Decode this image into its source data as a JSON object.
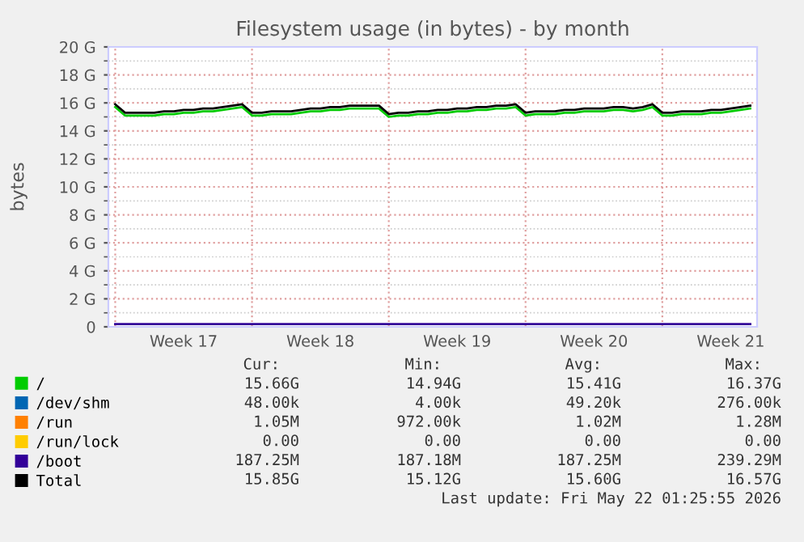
{
  "chart_data": {
    "type": "line",
    "title": "Filesystem usage (in bytes) - by month",
    "ylabel": "bytes",
    "categories": [
      null,
      null,
      null,
      null,
      null,
      null,
      null,
      "Week 17",
      null,
      null,
      null,
      null,
      null,
      null,
      null,
      null,
      null,
      null,
      null,
      null,
      null,
      "Week 18",
      null,
      null,
      null,
      null,
      null,
      null,
      null,
      null,
      null,
      null,
      null,
      null,
      null,
      "Week 19",
      null,
      null,
      null,
      null,
      null,
      null,
      null,
      null,
      null,
      null,
      null,
      null,
      null,
      "Week 20",
      null,
      null,
      null,
      null,
      null,
      null,
      null,
      null,
      null,
      null,
      null,
      null,
      null,
      "Week 21",
      null,
      null
    ],
    "series": [
      {
        "name": "/",
        "color": "#00cc00",
        "values": [
          15.7,
          15.1,
          15.1,
          15.1,
          15.1,
          15.2,
          15.2,
          15.3,
          15.3,
          15.4,
          15.4,
          15.5,
          15.6,
          15.7,
          15.1,
          15.1,
          15.2,
          15.2,
          15.2,
          15.3,
          15.4,
          15.4,
          15.5,
          15.5,
          15.6,
          15.6,
          15.6,
          15.6,
          15.0,
          15.1,
          15.1,
          15.2,
          15.2,
          15.3,
          15.3,
          15.4,
          15.4,
          15.5,
          15.5,
          15.6,
          15.6,
          15.7,
          15.1,
          15.2,
          15.2,
          15.2,
          15.3,
          15.3,
          15.4,
          15.4,
          15.4,
          15.5,
          15.5,
          15.4,
          15.5,
          15.7,
          15.1,
          15.1,
          15.2,
          15.2,
          15.2,
          15.3,
          15.3,
          15.4,
          15.5,
          15.6
        ]
      },
      {
        "name": "/dev/shm",
        "color": "#0066b3",
        "values": [
          null,
          null,
          null,
          null,
          null,
          null,
          null,
          null,
          null,
          null,
          null,
          null,
          null,
          null,
          null,
          null,
          null,
          null,
          null,
          null,
          null,
          null,
          null,
          null,
          null,
          null,
          null,
          null,
          null,
          null,
          null,
          null,
          null,
          null,
          null,
          null,
          null,
          null,
          null,
          null,
          null,
          null,
          null,
          null,
          null,
          null,
          null,
          null,
          null,
          null,
          null,
          null,
          null,
          null,
          null,
          null,
          null,
          null,
          null,
          null,
          null,
          null,
          null,
          null,
          null,
          null
        ]
      },
      {
        "name": "/run",
        "color": "#ff8000",
        "values": [
          null,
          null,
          null,
          null,
          null,
          null,
          null,
          null,
          null,
          null,
          null,
          null,
          null,
          null,
          null,
          null,
          null,
          null,
          null,
          null,
          null,
          null,
          null,
          null,
          null,
          null,
          null,
          null,
          null,
          null,
          null,
          null,
          null,
          null,
          null,
          null,
          null,
          null,
          null,
          null,
          null,
          null,
          null,
          null,
          null,
          null,
          null,
          null,
          null,
          null,
          null,
          null,
          null,
          null,
          null,
          null,
          null,
          null,
          null,
          null,
          null,
          null,
          null,
          null,
          null,
          null
        ]
      },
      {
        "name": "/run/lock",
        "color": "#ffcc00",
        "values": [
          null,
          null,
          null,
          null,
          null,
          null,
          null,
          null,
          null,
          null,
          null,
          null,
          null,
          null,
          null,
          null,
          null,
          null,
          null,
          null,
          null,
          null,
          null,
          null,
          null,
          null,
          null,
          null,
          null,
          null,
          null,
          null,
          null,
          null,
          null,
          null,
          null,
          null,
          null,
          null,
          null,
          null,
          null,
          null,
          null,
          null,
          null,
          null,
          null,
          null,
          null,
          null,
          null,
          null,
          null,
          null,
          null,
          null,
          null,
          null,
          null,
          null,
          null,
          null,
          null,
          null
        ]
      },
      {
        "name": "/boot",
        "color": "#330099",
        "values": [
          0.2,
          0.2,
          0.2,
          0.2,
          0.2,
          0.2,
          0.2,
          0.2,
          0.2,
          0.2,
          0.2,
          0.2,
          0.2,
          0.2,
          0.2,
          0.2,
          0.2,
          0.2,
          0.2,
          0.2,
          0.2,
          0.2,
          0.2,
          0.2,
          0.2,
          0.2,
          0.2,
          0.2,
          0.2,
          0.2,
          0.2,
          0.2,
          0.2,
          0.2,
          0.2,
          0.2,
          0.2,
          0.2,
          0.2,
          0.2,
          0.2,
          0.2,
          0.2,
          0.2,
          0.2,
          0.2,
          0.2,
          0.2,
          0.2,
          0.2,
          0.2,
          0.2,
          0.2,
          0.2,
          0.2,
          0.2,
          0.2,
          0.2,
          0.2,
          0.2,
          0.2,
          0.2,
          0.2,
          0.2,
          0.2,
          0.2
        ]
      },
      {
        "name": "Total",
        "color": "#000000",
        "values": [
          15.9,
          15.3,
          15.3,
          15.3,
          15.3,
          15.4,
          15.4,
          15.5,
          15.5,
          15.6,
          15.6,
          15.7,
          15.8,
          15.9,
          15.3,
          15.3,
          15.4,
          15.4,
          15.4,
          15.5,
          15.6,
          15.6,
          15.7,
          15.7,
          15.8,
          15.8,
          15.8,
          15.8,
          15.2,
          15.3,
          15.3,
          15.4,
          15.4,
          15.5,
          15.5,
          15.6,
          15.6,
          15.7,
          15.7,
          15.8,
          15.8,
          15.9,
          15.3,
          15.4,
          15.4,
          15.4,
          15.5,
          15.5,
          15.6,
          15.6,
          15.6,
          15.7,
          15.7,
          15.6,
          15.7,
          15.9,
          15.3,
          15.3,
          15.4,
          15.4,
          15.4,
          15.5,
          15.5,
          15.6,
          15.7,
          15.8
        ]
      }
    ],
    "ylim": [
      0,
      20
    ],
    "yticks": [
      {
        "value": 0,
        "label": "0"
      },
      {
        "value": 2,
        "label": "2 G"
      },
      {
        "value": 4,
        "label": "4 G"
      },
      {
        "value": 6,
        "label": "6 G"
      },
      {
        "value": 8,
        "label": "8 G"
      },
      {
        "value": 10,
        "label": "10 G"
      },
      {
        "value": 12,
        "label": "12 G"
      },
      {
        "value": 14,
        "label": "14 G"
      },
      {
        "value": 16,
        "label": "16 G"
      },
      {
        "value": 18,
        "label": "18 G"
      },
      {
        "value": 20,
        "label": "20 G"
      }
    ],
    "grid": true,
    "legend": "bottom",
    "annotations": [
      "Cur:",
      "Min:",
      "Avg:",
      "Max:",
      "15.66G",
      "14.94G",
      "15.41G",
      "16.37G",
      "48.00k",
      "4.00k",
      "49.20k",
      "276.00k",
      "1.05M",
      "972.00k",
      "1.02M",
      "1.28M",
      "0.00",
      "0.00",
      "0.00",
      "0.00",
      "187.25M",
      "187.18M",
      "187.25M",
      "239.29M",
      "15.85G",
      "15.12G",
      "15.60G",
      "16.57G",
      "Last update: Fri May 22 01:25:55 2026"
    ]
  }
}
